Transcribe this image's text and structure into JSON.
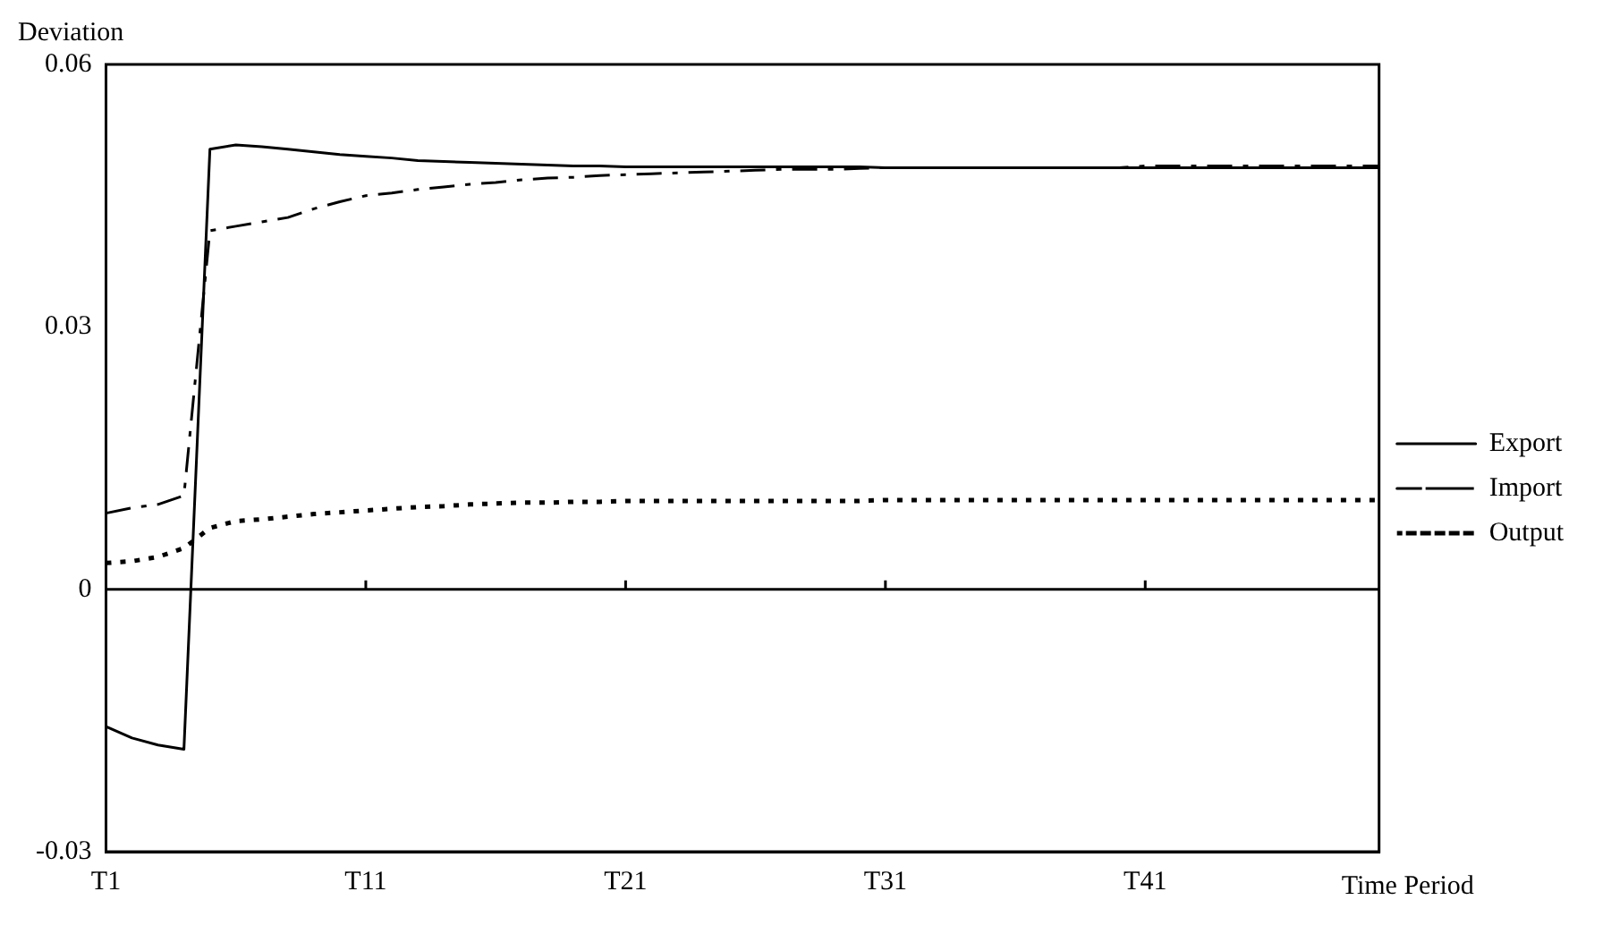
{
  "chart_data": {
    "type": "line",
    "xlabel": "Time Period",
    "ylabel": "Deviation",
    "categories": [
      "T1",
      null,
      null,
      null,
      null,
      null,
      null,
      null,
      null,
      null,
      "T11",
      null,
      null,
      null,
      null,
      null,
      null,
      null,
      null,
      null,
      "T21",
      null,
      null,
      null,
      null,
      null,
      null,
      null,
      null,
      null,
      "T31",
      null,
      null,
      null,
      null,
      null,
      null,
      null,
      null,
      null,
      "T41",
      null,
      null,
      null,
      null,
      null,
      null,
      null,
      null,
      null
    ],
    "series": [
      {
        "name": "Export",
        "color": "#000000",
        "line_style": "solid",
        "values": [
          -0.0157,
          -0.017,
          -0.0178,
          -0.0183,
          0.0503,
          0.0508,
          0.0506,
          0.0503,
          0.05,
          0.0497,
          0.0495,
          0.0493,
          0.049,
          0.0489,
          0.0488,
          0.0487,
          0.0486,
          0.0485,
          0.0484,
          0.0484,
          0.0483,
          0.0483,
          0.0483,
          0.0483,
          0.0483,
          0.0483,
          0.0483,
          0.0483,
          0.0483,
          0.0483,
          0.0482,
          0.0482,
          0.0482,
          0.0482,
          0.0482,
          0.0482,
          0.0482,
          0.0482,
          0.0482,
          0.0482,
          0.0482,
          0.0482,
          0.0482,
          0.0482,
          0.0482,
          0.0482,
          0.0482,
          0.0482,
          0.0482,
          0.0482
        ]
      },
      {
        "name": "Import",
        "color": "#000000",
        "line_style": "dashdot",
        "values": [
          0.0087,
          0.0093,
          0.0097,
          0.0107,
          0.041,
          0.0415,
          0.042,
          0.0425,
          0.0435,
          0.0443,
          0.045,
          0.0453,
          0.0457,
          0.046,
          0.0463,
          0.0465,
          0.0468,
          0.047,
          0.0471,
          0.0473,
          0.0474,
          0.0475,
          0.0476,
          0.0477,
          0.0478,
          0.0479,
          0.048,
          0.048,
          0.048,
          0.0481,
          0.0482,
          0.0482,
          0.0482,
          0.0482,
          0.0482,
          0.0482,
          0.0482,
          0.0482,
          0.0482,
          0.0482,
          0.0484,
          0.0484,
          0.0484,
          0.0484,
          0.0484,
          0.0484,
          0.0484,
          0.0484,
          0.0484,
          0.0484
        ]
      },
      {
        "name": "Output",
        "color": "#000000",
        "line_style": "dotted",
        "values": [
          0.003,
          0.0032,
          0.0037,
          0.0047,
          0.007,
          0.0078,
          0.008,
          0.0083,
          0.0086,
          0.0088,
          0.009,
          0.0092,
          0.0094,
          0.0095,
          0.0097,
          0.0098,
          0.0099,
          0.0099,
          0.01,
          0.01,
          0.0101,
          0.0101,
          0.0101,
          0.0101,
          0.0101,
          0.0101,
          0.0101,
          0.0101,
          0.0101,
          0.0101,
          0.0102,
          0.0102,
          0.0102,
          0.0102,
          0.0102,
          0.0102,
          0.0102,
          0.0102,
          0.0102,
          0.0102,
          0.0102,
          0.0102,
          0.0102,
          0.0102,
          0.0102,
          0.0102,
          0.0102,
          0.0102,
          0.0102,
          0.0102
        ]
      }
    ],
    "ylim": [
      -0.03,
      0.06
    ],
    "yticks": [
      -0.03,
      0,
      0.03,
      0.06
    ],
    "ref_lines": [
      {
        "axis": "y",
        "value": 0
      }
    ],
    "grid": false,
    "legend": "right",
    "marker": "none"
  }
}
